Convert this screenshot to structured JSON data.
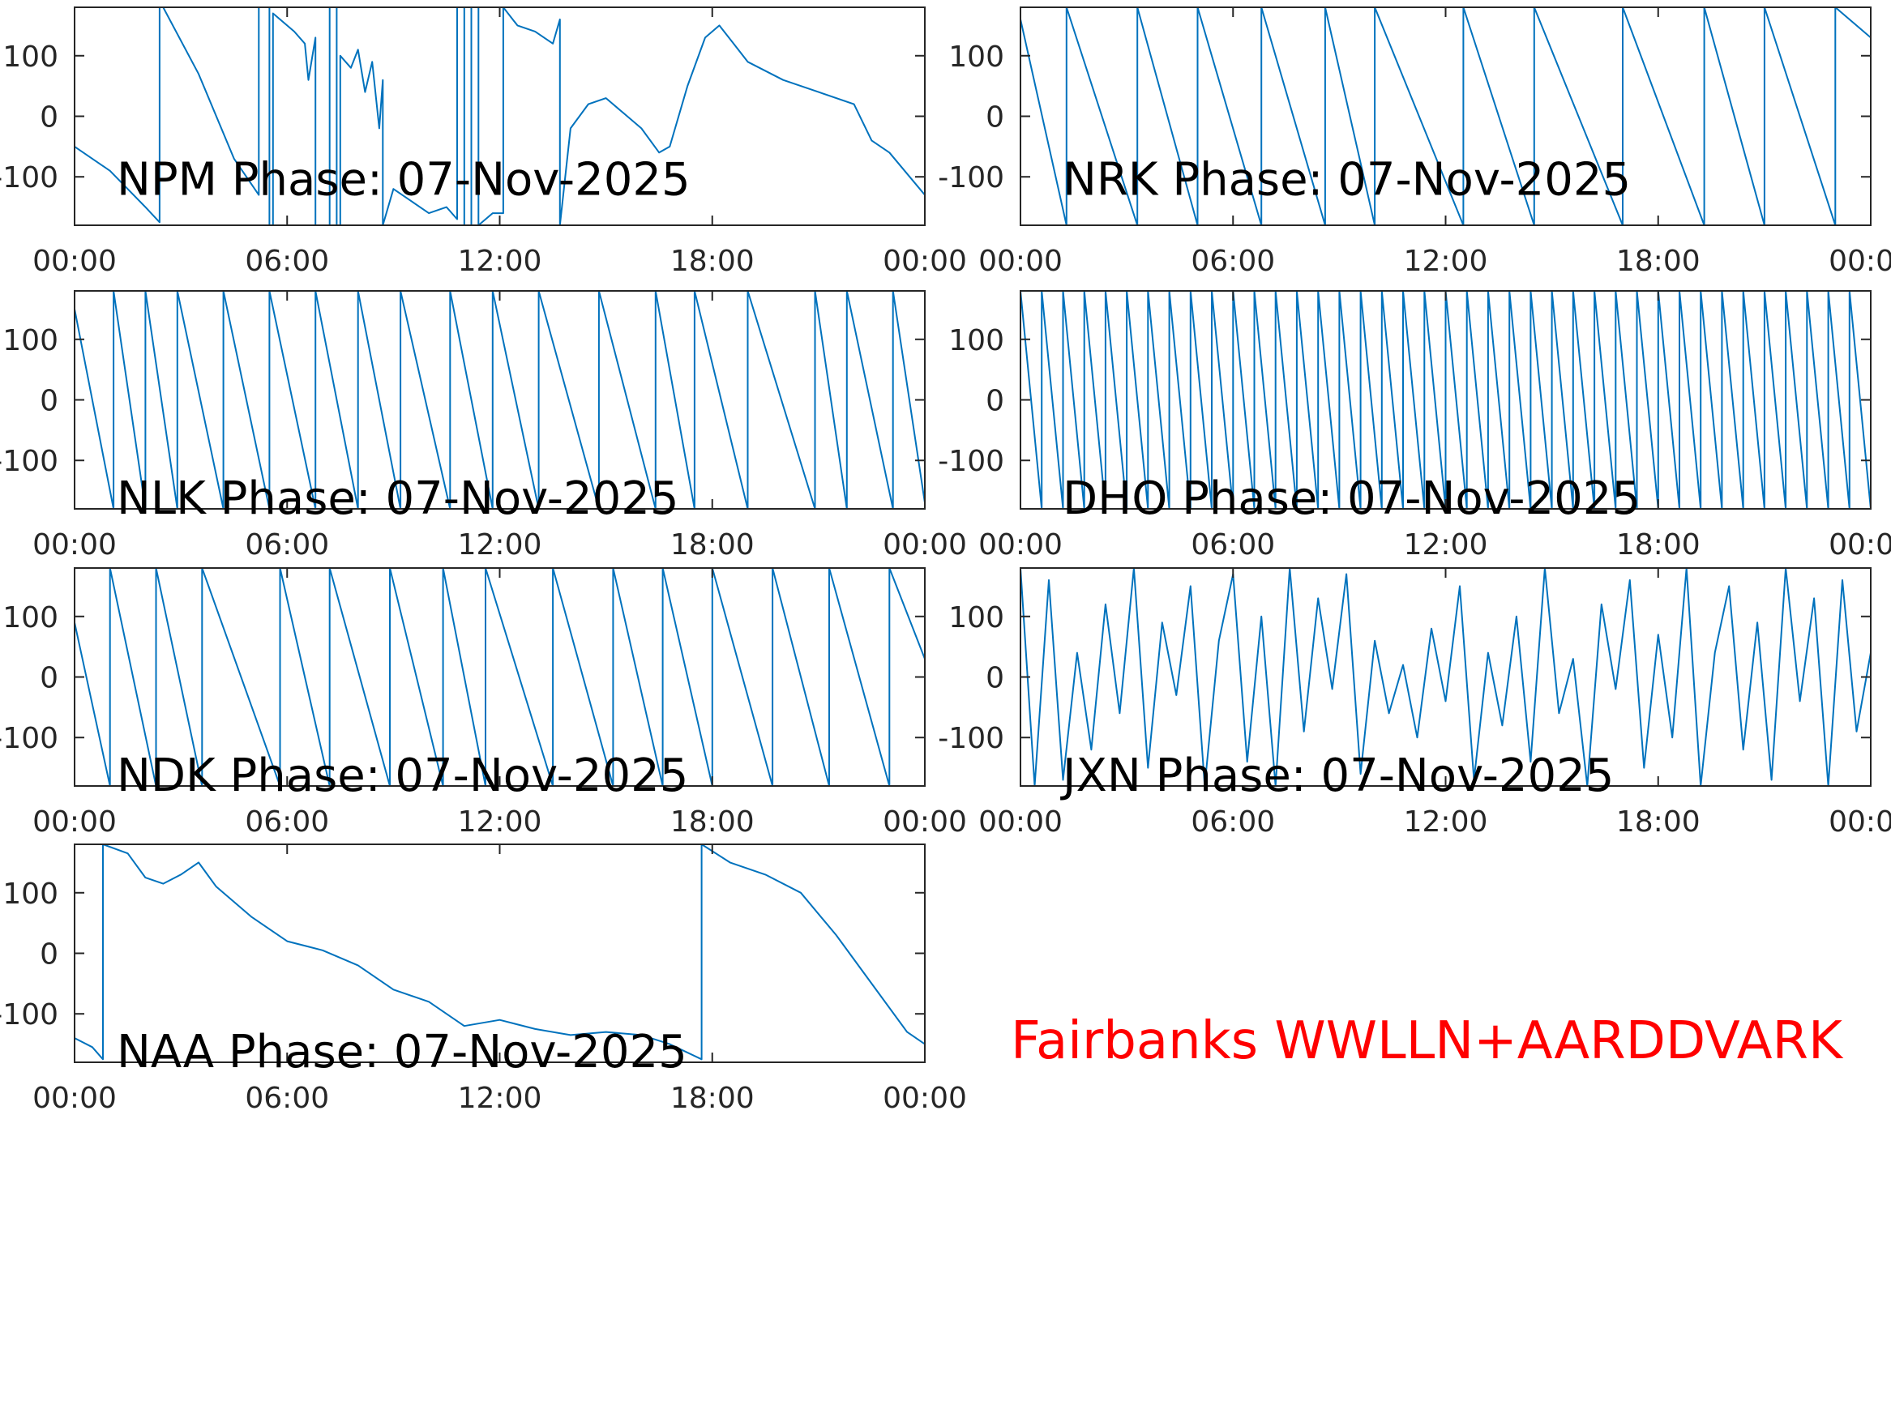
{
  "chart_data": [
    {
      "type": "line",
      "title": "NPM Phase: 07-Nov-2025",
      "color": "#0072bd",
      "x": [
        0,
        1,
        2,
        2.4,
        2.4,
        2.5,
        3.5,
        4.5,
        5.2,
        5.2,
        5.5,
        5.5,
        5.6,
        5.6,
        6.2,
        6.5,
        6.6,
        6.8,
        6.8,
        7.2,
        7.2,
        7.4,
        7.4,
        7.5,
        7.5,
        7.8,
        8,
        8.2,
        8.4,
        8.6,
        8.7,
        8.7,
        9,
        9.5,
        10,
        10.5,
        10.8,
        10.8,
        11,
        11,
        11.2,
        11.2,
        11.4,
        11.4,
        11.8,
        12.1,
        12.1,
        12.5,
        13,
        13.5,
        13.7,
        13.7,
        14,
        14.5,
        15,
        15.5,
        16,
        16.5,
        16.8,
        17.3,
        17.8,
        18.2,
        18.6,
        19,
        20,
        21,
        22,
        22.5,
        23,
        24
      ],
      "values": [
        -50,
        -90,
        -150,
        -175,
        180,
        180,
        70,
        -70,
        -130,
        180,
        180,
        -180,
        -180,
        170,
        140,
        120,
        60,
        130,
        -180,
        -180,
        180,
        180,
        -180,
        -180,
        100,
        80,
        110,
        40,
        90,
        -20,
        60,
        -180,
        -120,
        -140,
        -160,
        -150,
        -170,
        180,
        180,
        -180,
        -180,
        180,
        180,
        -180,
        -160,
        -160,
        180,
        150,
        140,
        120,
        160,
        -180,
        -20,
        20,
        30,
        5,
        -20,
        -60,
        -50,
        50,
        130,
        150,
        120,
        90,
        60,
        40,
        20,
        -40,
        -60,
        -130
      ],
      "xlim": [
        0,
        24
      ],
      "ylim": [
        -180,
        180
      ],
      "xticks": [
        {
          "value": 0,
          "label": "00:00"
        },
        {
          "value": 6,
          "label": "06:00"
        },
        {
          "value": 12,
          "label": "12:00"
        },
        {
          "value": 18,
          "label": "18:00"
        },
        {
          "value": 24,
          "label": "00:00"
        }
      ],
      "yticks": [
        -100,
        0,
        100
      ]
    },
    {
      "type": "line",
      "title": "NRK Phase: 07-Nov-2025",
      "color": "#0072bd",
      "x": [
        0,
        1.3,
        1.3,
        3.3,
        3.3,
        5.0,
        5.0,
        6.8,
        6.8,
        8.6,
        8.6,
        10.0,
        10.0,
        12.5,
        12.5,
        14.5,
        14.5,
        17.0,
        17.0,
        19.3,
        19.3,
        21.0,
        21.0,
        23.0,
        23.0,
        24
      ],
      "values": [
        160,
        -180,
        180,
        -180,
        180,
        -180,
        180,
        -180,
        180,
        -180,
        180,
        -180,
        180,
        -180,
        180,
        -180,
        180,
        -180,
        180,
        -180,
        180,
        -180,
        180,
        -180,
        180,
        130
      ],
      "xlim": [
        0,
        24
      ],
      "ylim": [
        -180,
        180
      ],
      "xticks": [
        {
          "value": 0,
          "label": "00:00"
        },
        {
          "value": 6,
          "label": "06:00"
        },
        {
          "value": 12,
          "label": "12:00"
        },
        {
          "value": 18,
          "label": "18:00"
        },
        {
          "value": 24,
          "label": "00:00"
        }
      ],
      "yticks": [
        -100,
        0,
        100
      ]
    },
    {
      "type": "line",
      "title": "NLK Phase: 07-Nov-2025",
      "color": "#0072bd",
      "x": [
        0,
        1.1,
        1.1,
        2.0,
        2.0,
        2.9,
        2.9,
        4.2,
        4.2,
        5.5,
        5.5,
        6.8,
        6.8,
        8.0,
        8.0,
        9.2,
        9.2,
        10.6,
        10.6,
        11.8,
        11.8,
        13.1,
        13.1,
        14.8,
        14.8,
        16.4,
        16.4,
        17.5,
        17.5,
        19.0,
        19.0,
        20.9,
        20.9,
        21.8,
        21.8,
        23.1,
        23.1,
        24
      ],
      "values": [
        150,
        -180,
        180,
        -180,
        180,
        -180,
        180,
        -180,
        180,
        -180,
        180,
        -180,
        180,
        -180,
        180,
        -180,
        180,
        -180,
        180,
        -180,
        180,
        -180,
        180,
        -180,
        180,
        -180,
        180,
        -180,
        180,
        -180,
        180,
        -180,
        180,
        -180,
        180,
        -180,
        180,
        -170
      ],
      "xlim": [
        0,
        24
      ],
      "ylim": [
        -180,
        180
      ],
      "xticks": [
        {
          "value": 0,
          "label": "00:00"
        },
        {
          "value": 6,
          "label": "06:00"
        },
        {
          "value": 12,
          "label": "12:00"
        },
        {
          "value": 18,
          "label": "18:00"
        },
        {
          "value": 24,
          "label": "00:00"
        }
      ],
      "yticks": [
        -100,
        0,
        100
      ]
    },
    {
      "type": "line",
      "title": "DHO Phase: 07-Nov-2025",
      "color": "#0072bd",
      "x": [
        0,
        0.6,
        0.6,
        1.2,
        1.2,
        1.8,
        1.8,
        2.4,
        2.4,
        3,
        3,
        3.6,
        3.6,
        4.2,
        4.2,
        4.8,
        4.8,
        5.4,
        5.4,
        6,
        6,
        6.6,
        6.6,
        7.2,
        7.2,
        7.8,
        7.8,
        8.4,
        8.4,
        9,
        9,
        9.6,
        9.6,
        10.2,
        10.2,
        10.8,
        10.8,
        11.4,
        11.4,
        12,
        12,
        12.6,
        12.6,
        13.2,
        13.2,
        13.8,
        13.8,
        14.4,
        14.4,
        15,
        15,
        15.6,
        15.6,
        16.2,
        16.2,
        16.8,
        16.8,
        17.4,
        17.4,
        18,
        18,
        18.6,
        18.6,
        19.2,
        19.2,
        19.8,
        19.8,
        20.4,
        20.4,
        21,
        21,
        21.6,
        21.6,
        22.2,
        22.2,
        22.8,
        22.8,
        23.4,
        23.4,
        24
      ],
      "values": [
        180,
        -180,
        180,
        -180,
        180,
        -180,
        180,
        -180,
        180,
        -180,
        180,
        -180,
        180,
        -180,
        180,
        -180,
        180,
        -180,
        180,
        -180,
        180,
        -180,
        180,
        -180,
        180,
        -180,
        180,
        -180,
        180,
        -180,
        180,
        -180,
        180,
        -180,
        180,
        -180,
        180,
        -180,
        180,
        -180,
        180,
        -180,
        180,
        -180,
        180,
        -180,
        180,
        -180,
        180,
        -180,
        180,
        -180,
        180,
        -180,
        180,
        -180,
        180,
        -180,
        180,
        -180,
        180,
        -180,
        180,
        -180,
        180,
        -180,
        180,
        -180,
        180,
        -180,
        180,
        -180,
        180,
        -180,
        180,
        -180,
        180,
        -180,
        180,
        -180
      ],
      "xlim": [
        0,
        24
      ],
      "ylim": [
        -180,
        180
      ],
      "xticks": [
        {
          "value": 0,
          "label": "00:00"
        },
        {
          "value": 6,
          "label": "06:00"
        },
        {
          "value": 12,
          "label": "12:00"
        },
        {
          "value": 18,
          "label": "18:00"
        },
        {
          "value": 24,
          "label": "00:00"
        }
      ],
      "yticks": [
        -100,
        0,
        100
      ]
    },
    {
      "type": "line",
      "title": "NDK Phase: 07-Nov-2025",
      "color": "#0072bd",
      "x": [
        0,
        1.0,
        1.0,
        2.3,
        2.3,
        3.6,
        3.6,
        5.8,
        5.8,
        7.2,
        7.2,
        8.9,
        8.9,
        10.4,
        10.4,
        11.6,
        11.6,
        13.5,
        13.5,
        15.2,
        15.2,
        16.6,
        16.6,
        18.0,
        18.0,
        19.7,
        19.7,
        21.3,
        21.3,
        23.0,
        23.0,
        24
      ],
      "values": [
        90,
        -180,
        180,
        -180,
        180,
        -180,
        180,
        -180,
        180,
        -180,
        180,
        -180,
        180,
        -180,
        180,
        -180,
        180,
        -180,
        180,
        -180,
        180,
        -180,
        180,
        -180,
        180,
        -180,
        180,
        -180,
        180,
        -180,
        180,
        30
      ],
      "xlim": [
        0,
        24
      ],
      "ylim": [
        -180,
        180
      ],
      "xticks": [
        {
          "value": 0,
          "label": "00:00"
        },
        {
          "value": 6,
          "label": "06:00"
        },
        {
          "value": 12,
          "label": "12:00"
        },
        {
          "value": 18,
          "label": "18:00"
        },
        {
          "value": 24,
          "label": "00:00"
        }
      ],
      "yticks": [
        -100,
        0,
        100
      ]
    },
    {
      "type": "line",
      "title": "JXN Phase: 07-Nov-2025",
      "color": "#0072bd",
      "x": [
        0,
        0.4,
        0.8,
        1.2,
        1.6,
        2,
        2.4,
        2.8,
        3.2,
        3.6,
        4,
        4.4,
        4.8,
        5.2,
        5.6,
        6,
        6.4,
        6.8,
        7.2,
        7.6,
        8,
        8.4,
        8.8,
        9.2,
        9.6,
        10,
        10.4,
        10.8,
        11.2,
        11.6,
        12,
        12.4,
        12.8,
        13.2,
        13.6,
        14,
        14.4,
        14.8,
        15.2,
        15.6,
        16,
        16.4,
        16.8,
        17.2,
        17.6,
        18,
        18.4,
        18.8,
        19.2,
        19.6,
        20,
        20.4,
        20.8,
        21.2,
        21.6,
        22,
        22.4,
        22.8,
        23.2,
        23.6,
        24
      ],
      "values": [
        180,
        -180,
        160,
        -170,
        40,
        -120,
        120,
        -60,
        180,
        -150,
        90,
        -30,
        150,
        -180,
        60,
        170,
        -140,
        100,
        -180,
        180,
        -90,
        130,
        -20,
        170,
        -160,
        60,
        -60,
        20,
        -100,
        80,
        -40,
        150,
        -170,
        40,
        -80,
        100,
        -140,
        180,
        -60,
        30,
        -180,
        120,
        -20,
        160,
        -150,
        70,
        -100,
        180,
        -180,
        40,
        150,
        -120,
        90,
        -170,
        180,
        -40,
        130,
        -180,
        160,
        -90,
        40
      ],
      "xlim": [
        0,
        24
      ],
      "ylim": [
        -180,
        180
      ],
      "xticks": [
        {
          "value": 0,
          "label": "00:00"
        },
        {
          "value": 6,
          "label": "06:00"
        },
        {
          "value": 12,
          "label": "12:00"
        },
        {
          "value": 18,
          "label": "18:00"
        },
        {
          "value": 24,
          "label": "00:00"
        }
      ],
      "yticks": [
        -100,
        0,
        100
      ]
    },
    {
      "type": "line",
      "title": "NAA Phase: 07-Nov-2025",
      "color": "#0072bd",
      "x": [
        0,
        0.5,
        0.8,
        0.8,
        1.5,
        2,
        2.5,
        3,
        3.5,
        4,
        5,
        6,
        7,
        8,
        9,
        10,
        11,
        12,
        13,
        14,
        15,
        16,
        16.8,
        17.7,
        17.7,
        18.5,
        19.5,
        20.5,
        21.5,
        22.5,
        23.5,
        24
      ],
      "values": [
        -140,
        -155,
        -175,
        180,
        165,
        125,
        115,
        130,
        150,
        110,
        60,
        20,
        5,
        -20,
        -60,
        -80,
        -120,
        -110,
        -125,
        -135,
        -130,
        -135,
        -150,
        -175,
        180,
        150,
        130,
        100,
        30,
        -50,
        -130,
        -150
      ],
      "xlim": [
        0,
        24
      ],
      "ylim": [
        -180,
        180
      ],
      "xticks": [
        {
          "value": 0,
          "label": "00:00"
        },
        {
          "value": 6,
          "label": "06:00"
        },
        {
          "value": 12,
          "label": "12:00"
        },
        {
          "value": 18,
          "label": "18:00"
        },
        {
          "value": 24,
          "label": "00:00"
        }
      ],
      "yticks": [
        -100,
        0,
        100
      ]
    }
  ],
  "annotation": "Fairbanks WWLLN+AARDDVARK"
}
